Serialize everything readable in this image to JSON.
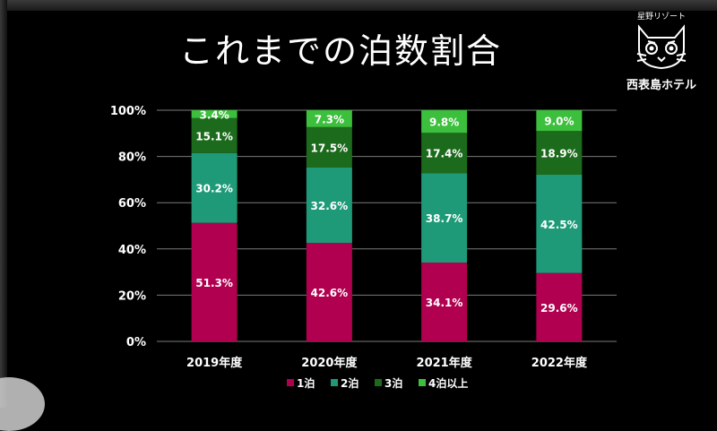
{
  "title": "これまでの泊数割合",
  "logo": {
    "brand": "星野リゾート",
    "name": "西表島ホテル",
    "icon": "iriomote-cat-icon"
  },
  "chart_data": {
    "type": "bar",
    "stacked": true,
    "categories": [
      "2019年度",
      "2020年度",
      "2021年度",
      "2022年度"
    ],
    "series": [
      {
        "name": "1泊",
        "color": "#b0004f",
        "values": [
          51.3,
          42.6,
          34.1,
          29.6
        ],
        "labels": [
          "51.3%",
          "42.6%",
          "34.1%",
          "29.6%"
        ]
      },
      {
        "name": "2泊",
        "color": "#1e9a78",
        "values": [
          30.2,
          32.6,
          38.7,
          42.5
        ],
        "labels": [
          "30.2%",
          "32.6%",
          "38.7%",
          "42.5%"
        ]
      },
      {
        "name": "3泊",
        "color": "#1c6a1c",
        "values": [
          15.1,
          17.5,
          17.4,
          18.9
        ],
        "labels": [
          "15.1%",
          "17.5%",
          "17.4%",
          "18.9%"
        ]
      },
      {
        "name": "4泊以上",
        "color": "#3cbf3c",
        "values": [
          3.4,
          7.3,
          9.8,
          9.0
        ],
        "labels": [
          "3.4%",
          "7.3%",
          "9.8%",
          "9.0%"
        ]
      }
    ],
    "yticks": [
      "0%",
      "20%",
      "40%",
      "60%",
      "80%",
      "100%"
    ],
    "ylim": [
      0,
      100
    ],
    "grid": true,
    "legend": "bottom"
  }
}
